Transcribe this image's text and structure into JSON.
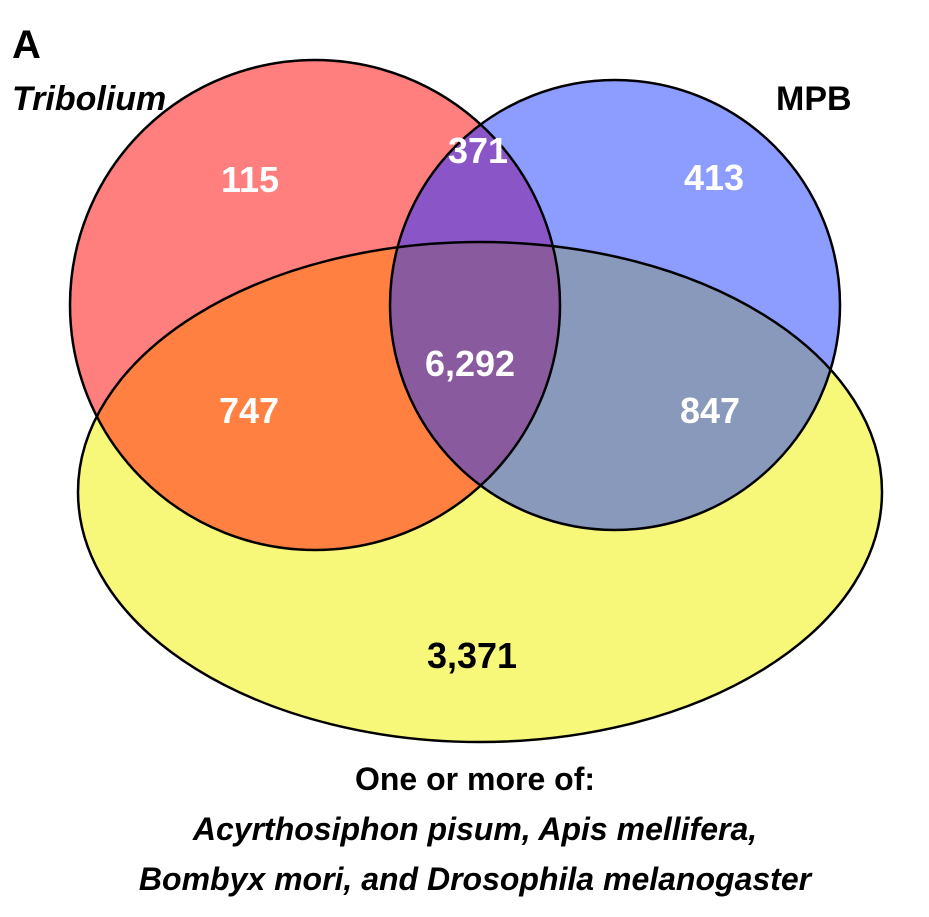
{
  "panel_label": "A",
  "sets": {
    "a": {
      "label": "Tribolium",
      "color": "#ff7f7f"
    },
    "b": {
      "label": "MPB",
      "color": "#8c9cff"
    },
    "c": {
      "label": "",
      "color": "#f7f77a"
    }
  },
  "region_colors": {
    "ab": "#8a55c6",
    "ac": "#ff8040",
    "bc": "#8899bb",
    "abc": "#8a5a9e"
  },
  "regions": {
    "a_only": "115",
    "ab_only": "371",
    "b_only": "413",
    "ac_only": "747",
    "abc": "6,292",
    "bc_only": "847",
    "c_only": "3,371"
  },
  "caption": {
    "line1": "One or more of:",
    "line2": "Acyrthosiphon pisum, Apis mellifera,",
    "line3": "Bombyx mori, and Drosophila melanogaster"
  }
}
